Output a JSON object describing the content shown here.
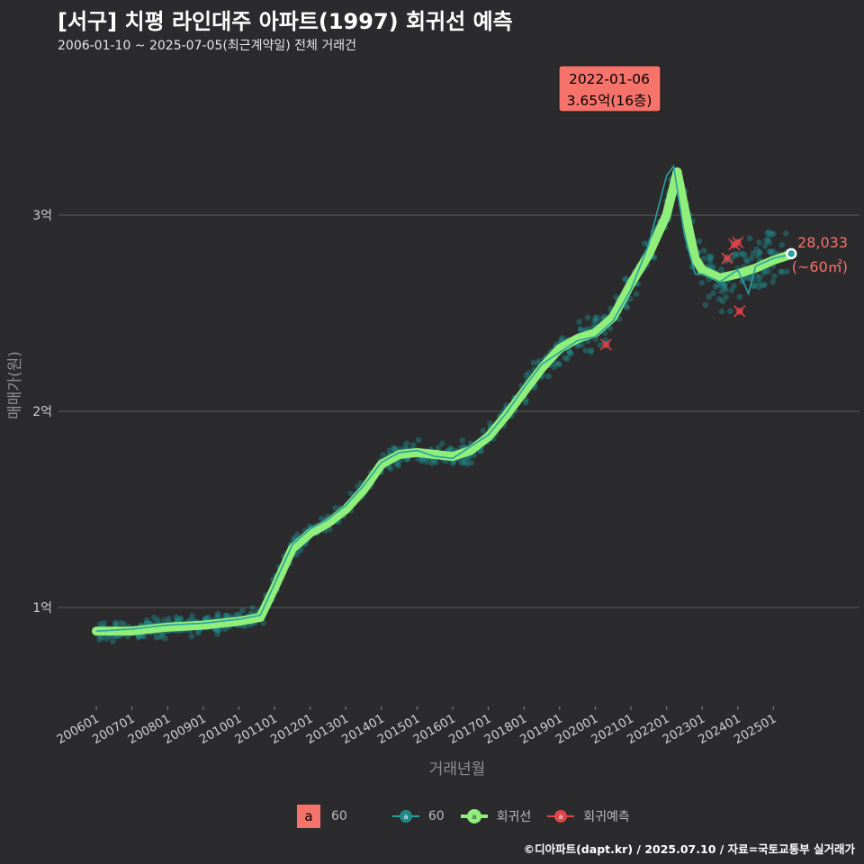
{
  "header": {
    "title": "[서구] 치평 라인대주 아파트(1997) 회귀선 예측",
    "subtitle": "2006-01-10 ~ 2025-07-05(최근계약일) 전체 거래건"
  },
  "callout": {
    "date": "2022-01-06",
    "price": "3.65억(16층)"
  },
  "last_label": {
    "price": "28,033",
    "area": "(~60㎡)"
  },
  "legend": {
    "area_key": "a",
    "area_label": "60",
    "series_label": "60",
    "trend_label": "회귀선",
    "predict_label": "회귀예측"
  },
  "footer": "©디아파트(dapt.kr) / 2025.07.10 / 자료=국토교통부 실거래가",
  "colors": {
    "background": "#2b2b2d",
    "scatter": "#1f8a8a",
    "trend": "#90ee7a",
    "actual_line": "#2aa0a0",
    "predict": "#e0454a",
    "callout_bg": "#f6736b"
  },
  "chart_data": {
    "type": "scatter",
    "title": "[서구] 치평 라인대주 아파트(1997) 회귀선 예측",
    "xlabel": "거래년월",
    "ylabel": "매매가(원)",
    "xlim": [
      2005.7,
      2026.2
    ],
    "ylim": [
      0.45,
      3.9
    ],
    "y_unit": "억",
    "y_ticks": [
      {
        "value": 1,
        "label": "1억"
      },
      {
        "value": 2,
        "label": "2억"
      },
      {
        "value": 3,
        "label": "3억"
      }
    ],
    "x_ticks": [
      "200601",
      "200701",
      "200801",
      "200901",
      "201001",
      "201101",
      "201201",
      "201301",
      "201401",
      "201501",
      "201601",
      "201701",
      "201801",
      "201901",
      "202001",
      "202101",
      "202201",
      "202301",
      "202401",
      "202501"
    ],
    "trend_series": {
      "name": "회귀선",
      "x": [
        2006.0,
        2007.0,
        2008.0,
        2009.0,
        2010.0,
        2010.6,
        2011.0,
        2011.5,
        2012.0,
        2012.5,
        2013.0,
        2013.5,
        2014.0,
        2014.5,
        2015.0,
        2015.5,
        2016.0,
        2016.5,
        2017.0,
        2017.5,
        2018.0,
        2018.5,
        2019.0,
        2019.5,
        2020.0,
        2020.5,
        2021.0,
        2021.5,
        2022.0,
        2022.3,
        2022.6,
        2022.8,
        2023.0,
        2023.5,
        2024.0,
        2024.5,
        2025.0,
        2025.5
      ],
      "y": [
        0.88,
        0.88,
        0.9,
        0.91,
        0.93,
        0.95,
        1.1,
        1.3,
        1.38,
        1.43,
        1.5,
        1.6,
        1.73,
        1.78,
        1.79,
        1.78,
        1.77,
        1.8,
        1.87,
        1.98,
        2.1,
        2.22,
        2.32,
        2.37,
        2.4,
        2.48,
        2.65,
        2.8,
        3.0,
        3.22,
        2.95,
        2.78,
        2.72,
        2.68,
        2.7,
        2.73,
        2.77,
        2.8
      ]
    },
    "actual_series": {
      "name": "60",
      "x": [
        2006.0,
        2007.0,
        2008.0,
        2009.0,
        2010.0,
        2010.6,
        2011.0,
        2011.5,
        2012.0,
        2012.5,
        2013.0,
        2013.5,
        2014.0,
        2014.5,
        2015.0,
        2015.5,
        2016.0,
        2016.5,
        2017.0,
        2017.5,
        2018.0,
        2018.5,
        2019.0,
        2019.5,
        2020.0,
        2020.5,
        2021.0,
        2021.5,
        2022.0,
        2022.2,
        2022.5,
        2022.8,
        2023.0,
        2023.5,
        2024.0,
        2024.3,
        2024.5,
        2025.0,
        2025.5
      ],
      "y": [
        0.88,
        0.89,
        0.91,
        0.92,
        0.94,
        0.96,
        1.12,
        1.32,
        1.4,
        1.45,
        1.52,
        1.62,
        1.74,
        1.79,
        1.8,
        1.77,
        1.76,
        1.82,
        1.88,
        1.99,
        2.12,
        2.24,
        2.3,
        2.36,
        2.38,
        2.46,
        2.62,
        2.85,
        3.2,
        3.25,
        2.9,
        2.7,
        2.7,
        2.66,
        2.72,
        2.6,
        2.74,
        2.78,
        2.8
      ]
    },
    "predictions": [
      {
        "x": 2020.3,
        "y": 2.34
      },
      {
        "x": 2023.7,
        "y": 2.78
      },
      {
        "x": 2023.9,
        "y": 2.85
      },
      {
        "x": 2024.0,
        "y": 2.86
      },
      {
        "x": 2024.05,
        "y": 2.51
      }
    ],
    "highlight_point": {
      "x": 2022.0,
      "y": 3.65,
      "label": "2022-01-06 3.65억(16층)"
    },
    "last_point": {
      "x": 2025.5,
      "y": 2.8033,
      "label": "28,033"
    }
  }
}
